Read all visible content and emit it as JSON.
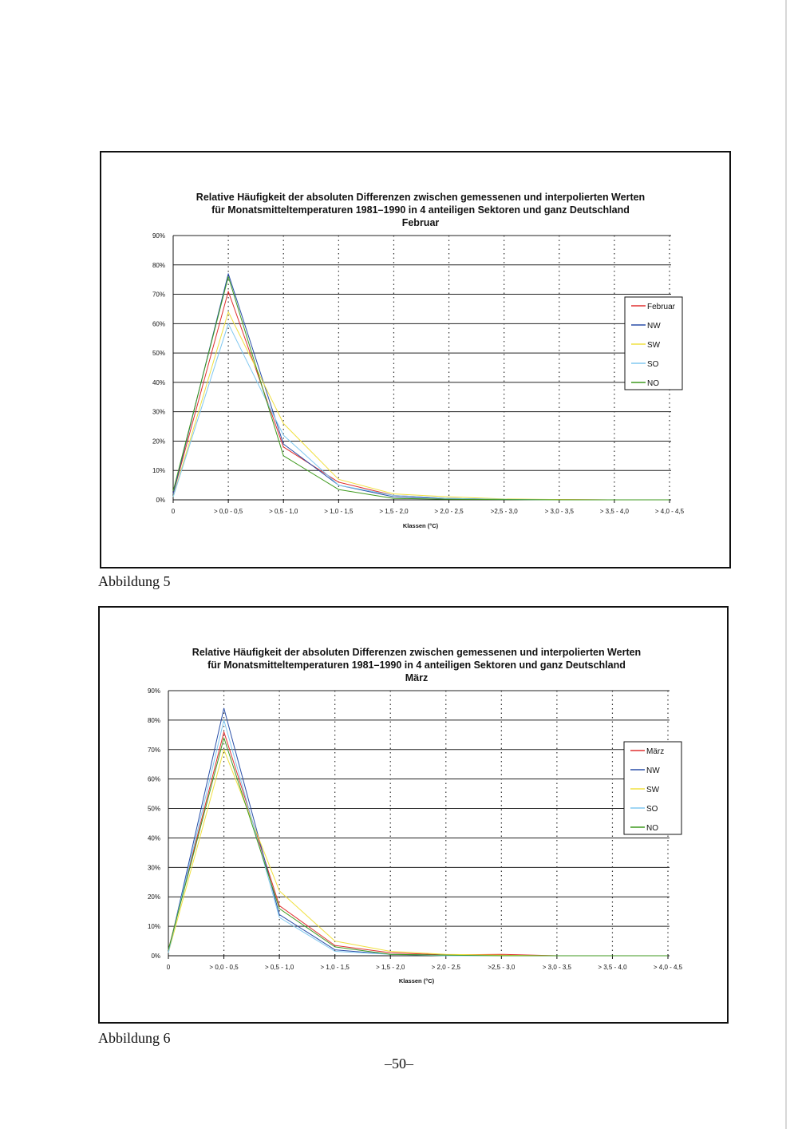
{
  "figures": [
    {
      "caption": "Abbildung 5",
      "legend_entries": [
        "Februar",
        "NW",
        "SW",
        "SO",
        "NO"
      ]
    },
    {
      "caption": "Abbildung 6",
      "legend_entries": [
        "März",
        "NW",
        "SW",
        "SO",
        "NO"
      ]
    }
  ],
  "page_number": "–50–",
  "chart_data": [
    {
      "type": "line",
      "title": "Relative Häufigkeit der absoluten Differenzen zwischen gemessenen und interpolierten Werten",
      "subtitle": "für Monatsmitteltemperaturen 1981–1990 in 4 anteiligen Sektoren und ganz Deutschland",
      "month": "Februar",
      "xlabel": "Klassen (°C)",
      "ylabel": "",
      "categories": [
        "0",
        "> 0,0 - 0,5",
        "> 0,5 - 1,0",
        "> 1,0 - 1,5",
        "> 1,5 - 2,0",
        "> 2,0 - 2,5",
        ">2,5 - 3,0",
        "> 3,0 - 3,5",
        "> 3,5 - 4,0",
        "> 4,0 - 4,5"
      ],
      "y_ticks": [
        "0%",
        "10%",
        "20%",
        "30%",
        "40%",
        "50%",
        "60%",
        "70%",
        "80%",
        "90%"
      ],
      "ylim": [
        0,
        90
      ],
      "grid": true,
      "legend": "right",
      "series": [
        {
          "name": "Februar",
          "color": "#e03030",
          "values": [
            2,
            71,
            18,
            6,
            1.5,
            0.5,
            0.2,
            0.1,
            0,
            0
          ]
        },
        {
          "name": "NW",
          "color": "#2a4fa8",
          "values": [
            2,
            77,
            19,
            5,
            1,
            0.5,
            0.2,
            0,
            0,
            0
          ]
        },
        {
          "name": "SW",
          "color": "#f0e040",
          "values": [
            1,
            64,
            26,
            7,
            2,
            1,
            0.3,
            0.1,
            0,
            0
          ]
        },
        {
          "name": "SO",
          "color": "#80c8f0",
          "values": [
            1,
            60,
            22,
            5,
            1.5,
            0.5,
            0.2,
            0,
            0,
            0
          ]
        },
        {
          "name": "NO",
          "color": "#3f9a1f",
          "values": [
            3,
            76,
            15,
            3.5,
            0.5,
            0.2,
            0.1,
            0,
            0,
            0
          ]
        }
      ]
    },
    {
      "type": "line",
      "title": "Relative Häufigkeit der absoluten Differenzen zwischen gemessenen und interpolierten Werten",
      "subtitle": "für Monatsmitteltemperaturen 1981–1990 in 4 anteiligen Sektoren und ganz Deutschland",
      "month": "März",
      "xlabel": "Klassen (°C)",
      "ylabel": "",
      "categories": [
        "0",
        "> 0,0 - 0,5",
        "> 0,5 - 1,0",
        "> 1,0 - 1,5",
        "> 1,5 - 2,0",
        "> 2,0 - 2,5",
        ">2,5 - 3,0",
        "> 3,0 - 3,5",
        "> 3,5 - 4,0",
        "> 4,0 - 4,5"
      ],
      "y_ticks": [
        "0%",
        "10%",
        "20%",
        "30%",
        "40%",
        "50%",
        "60%",
        "70%",
        "80%",
        "90%"
      ],
      "ylim": [
        0,
        90
      ],
      "grid": true,
      "legend": "right",
      "series": [
        {
          "name": "März",
          "color": "#e03030",
          "values": [
            2,
            76,
            17,
            3.5,
            1,
            0.3,
            0.5,
            0,
            0,
            0
          ]
        },
        {
          "name": "NW",
          "color": "#2a4fa8",
          "values": [
            1,
            84,
            14,
            2,
            0.5,
            0.2,
            0,
            0,
            0,
            0
          ]
        },
        {
          "name": "SW",
          "color": "#f0e040",
          "values": [
            1,
            70,
            22,
            5,
            1.5,
            0.5,
            0.2,
            0,
            0,
            0
          ]
        },
        {
          "name": "SO",
          "color": "#80c8f0",
          "values": [
            1,
            80,
            13,
            1.5,
            0.5,
            0,
            0,
            0,
            0,
            0
          ]
        },
        {
          "name": "NO",
          "color": "#3f9a1f",
          "values": [
            2,
            74,
            16,
            3,
            0.5,
            0.2,
            0,
            0,
            0,
            0
          ]
        }
      ]
    }
  ]
}
